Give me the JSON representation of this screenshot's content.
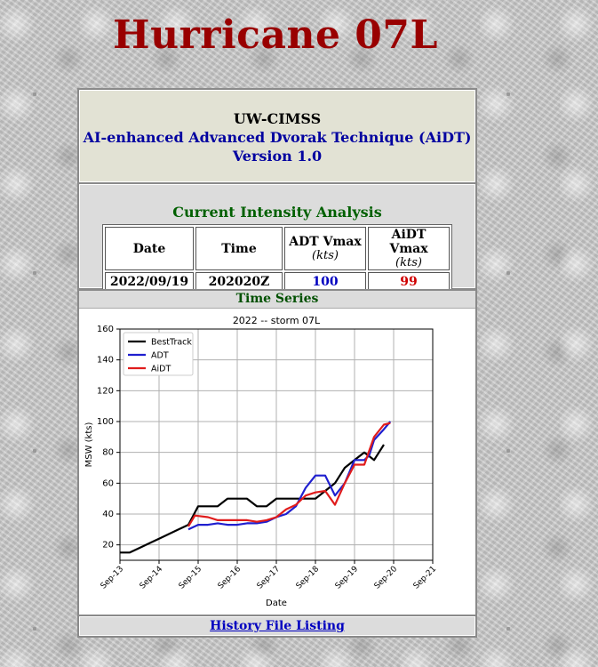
{
  "page": {
    "title": "Hurricane 07L"
  },
  "header": {
    "org": "UW-CIMSS",
    "product": "AI-enhanced Advanced Dvorak Technique (AiDT)",
    "version": "Version 1.0"
  },
  "intensity": {
    "title": "Current Intensity Analysis",
    "columns": {
      "date": "Date",
      "time": "Time",
      "adt": "ADT Vmax",
      "aidt": "AiDT Vmax",
      "units": "(kts)"
    },
    "row": {
      "date": "2022/09/19",
      "time": "202020Z",
      "adt": "100",
      "aidt": "99"
    }
  },
  "series": {
    "title": "Time Series"
  },
  "history": {
    "link_label": "History File Listing"
  },
  "colors": {
    "title": "#990000",
    "besttrack": "#000000",
    "adt": "#1f1fcf",
    "aidt": "#e01c1c"
  },
  "chart_data": {
    "type": "line",
    "title": "2022 -- storm 07L",
    "xlabel": "Date",
    "ylabel": "MSW (kts)",
    "ylim": [
      10,
      160
    ],
    "yticks": [
      20,
      40,
      60,
      80,
      100,
      120,
      140,
      160
    ],
    "xlim": [
      "2022-09-13",
      "2022-09-21"
    ],
    "xtick_labels": [
      "Sep-13",
      "Sep-14",
      "Sep-15",
      "Sep-16",
      "Sep-17",
      "Sep-18",
      "Sep-19",
      "Sep-20",
      "Sep-21"
    ],
    "grid": true,
    "legend_position": "top-left",
    "series": [
      {
        "name": "BestTrack",
        "color": "#000000",
        "x": [
          "2022-09-13 00:00",
          "2022-09-13 06:00",
          "2022-09-13 12:00",
          "2022-09-13 18:00",
          "2022-09-14 00:00",
          "2022-09-14 06:00",
          "2022-09-14 12:00",
          "2022-09-14 18:00",
          "2022-09-15 00:00",
          "2022-09-15 06:00",
          "2022-09-15 12:00",
          "2022-09-15 18:00",
          "2022-09-16 00:00",
          "2022-09-16 06:00",
          "2022-09-16 12:00",
          "2022-09-16 18:00",
          "2022-09-17 00:00",
          "2022-09-17 06:00",
          "2022-09-17 12:00",
          "2022-09-17 18:00",
          "2022-09-18 00:00",
          "2022-09-18 06:00",
          "2022-09-18 12:00",
          "2022-09-18 18:00",
          "2022-09-19 00:00",
          "2022-09-19 06:00",
          "2022-09-19 12:00",
          "2022-09-19 18:00"
        ],
        "y": [
          15,
          15,
          18,
          21,
          24,
          27,
          30,
          33,
          45,
          45,
          45,
          50,
          50,
          50,
          45,
          45,
          50,
          50,
          50,
          50,
          50,
          55,
          60,
          70,
          75,
          80,
          75,
          85
        ]
      },
      {
        "name": "ADT",
        "color": "#1f1fcf",
        "x": [
          "2022-09-14 18:00",
          "2022-09-15 00:00",
          "2022-09-15 06:00",
          "2022-09-15 12:00",
          "2022-09-15 18:00",
          "2022-09-16 00:00",
          "2022-09-16 06:00",
          "2022-09-16 12:00",
          "2022-09-16 18:00",
          "2022-09-17 00:00",
          "2022-09-17 06:00",
          "2022-09-17 12:00",
          "2022-09-17 18:00",
          "2022-09-18 00:00",
          "2022-09-18 06:00",
          "2022-09-18 12:00",
          "2022-09-18 18:00",
          "2022-09-19 00:00",
          "2022-09-19 06:00",
          "2022-09-19 09:00",
          "2022-09-19 12:00",
          "2022-09-19 18:00",
          "2022-09-19 22:00"
        ],
        "y": [
          30,
          33,
          33,
          34,
          33,
          33,
          34,
          34,
          35,
          38,
          40,
          45,
          57,
          65,
          65,
          52,
          60,
          75,
          75,
          78,
          88,
          95,
          100
        ]
      },
      {
        "name": "AiDT",
        "color": "#e01c1c",
        "x": [
          "2022-09-14 18:00",
          "2022-09-14 22:00",
          "2022-09-15 06:00",
          "2022-09-15 12:00",
          "2022-09-15 18:00",
          "2022-09-16 00:00",
          "2022-09-16 06:00",
          "2022-09-16 12:00",
          "2022-09-16 18:00",
          "2022-09-17 00:00",
          "2022-09-17 06:00",
          "2022-09-17 12:00",
          "2022-09-17 18:00",
          "2022-09-18 00:00",
          "2022-09-18 06:00",
          "2022-09-18 12:00",
          "2022-09-18 18:00",
          "2022-09-19 00:00",
          "2022-09-19 06:00",
          "2022-09-19 12:00",
          "2022-09-19 18:00",
          "2022-09-19 22:00"
        ],
        "y": [
          32,
          39,
          38,
          36,
          36,
          36,
          36,
          35,
          36,
          38,
          43,
          46,
          52,
          54,
          55,
          46,
          60,
          72,
          72,
          90,
          98,
          99
        ]
      }
    ]
  }
}
